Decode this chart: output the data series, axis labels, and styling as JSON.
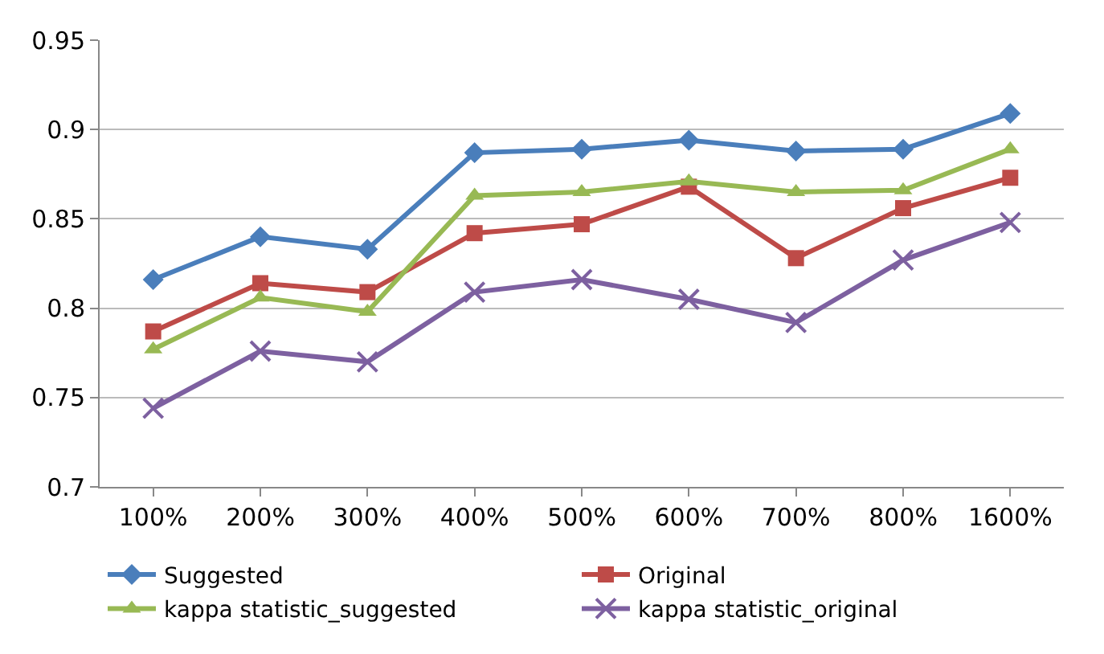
{
  "chart_data": {
    "type": "line",
    "categories": [
      "100%",
      "200%",
      "300%",
      "400%",
      "500%",
      "600%",
      "700%",
      "800%",
      "1600%"
    ],
    "series": [
      {
        "name": "Suggested",
        "color": "#4a7ebb",
        "marker": "diamond",
        "values": [
          0.816,
          0.84,
          0.833,
          0.887,
          0.889,
          0.894,
          0.888,
          0.889,
          0.909
        ]
      },
      {
        "name": "Original",
        "color": "#be4b48",
        "marker": "square",
        "values": [
          0.787,
          0.814,
          0.809,
          0.842,
          0.847,
          0.868,
          0.828,
          0.856,
          0.873
        ]
      },
      {
        "name": "kappa statistic_suggested",
        "color": "#98b954",
        "marker": "triangle",
        "values": [
          0.777,
          0.806,
          0.798,
          0.863,
          0.865,
          0.871,
          0.865,
          0.866,
          0.889
        ]
      },
      {
        "name": "kappa statistic_original",
        "color": "#7d60a0",
        "marker": "cross",
        "values": [
          0.744,
          0.776,
          0.77,
          0.809,
          0.816,
          0.805,
          0.792,
          0.827,
          0.848
        ]
      }
    ],
    "ylim": [
      0.7,
      0.95
    ],
    "yticks": [
      0.7,
      0.75,
      0.8,
      0.85,
      0.9,
      0.95
    ],
    "grid": "y",
    "legend": "bottom",
    "line_style": "solid"
  }
}
